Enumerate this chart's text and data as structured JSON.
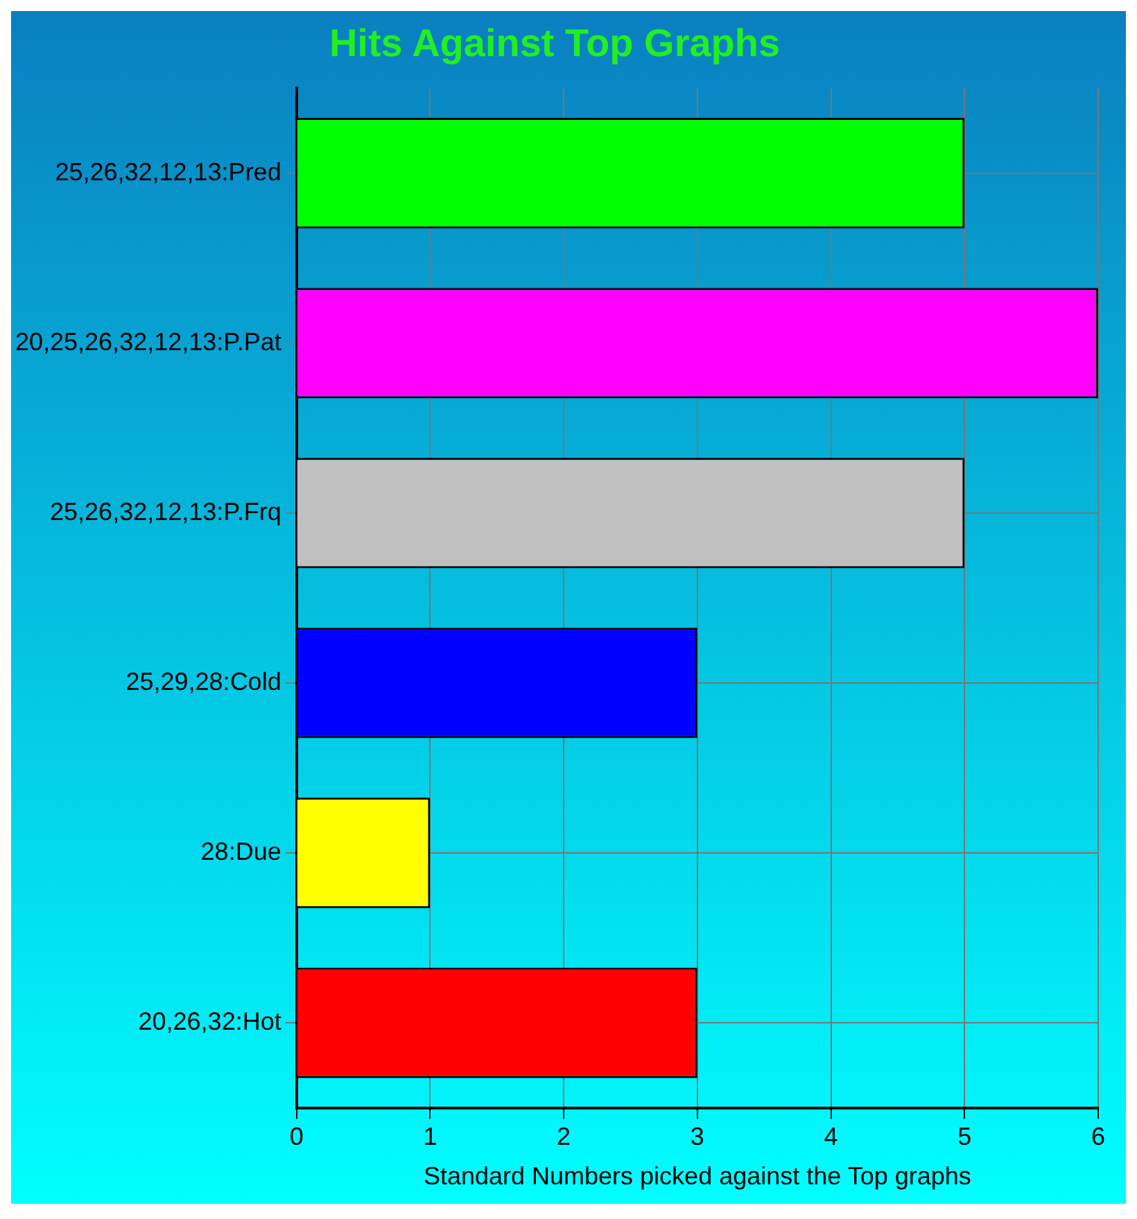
{
  "chart_data": {
    "type": "bar",
    "orientation": "horizontal",
    "title": "Hits Against Top Graphs",
    "xlabel": "Standard Numbers picked against the Top graphs",
    "categories": [
      "25,26,32,12,13:Pred",
      "20,25,26,32,12,13:P.Pat",
      "25,26,32,12,13:P.Frq",
      "25,29,28:Cold",
      "28:Due",
      "20,26,32:Hot"
    ],
    "values": [
      5,
      6,
      5,
      3,
      1,
      3
    ],
    "colors": [
      "#00ff00",
      "#ff00ff",
      "#c0c0c0",
      "#0000ff",
      "#ffff00",
      "#ff0000"
    ],
    "xlim": [
      0,
      6
    ],
    "xticks": [
      0,
      1,
      2,
      3,
      4,
      5,
      6
    ],
    "grid": true,
    "legend": false
  }
}
